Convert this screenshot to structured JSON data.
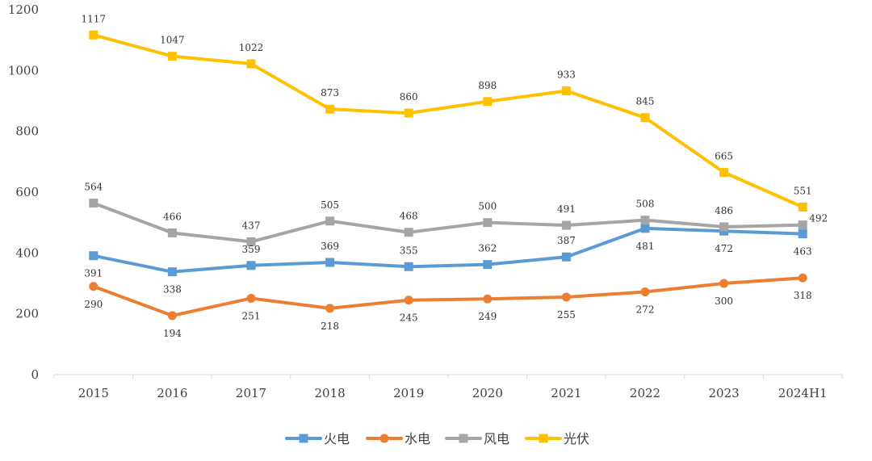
{
  "chart_data": {
    "type": "line",
    "title": "",
    "xlabel": "",
    "ylabel": "",
    "ylim": [
      0,
      1200
    ],
    "yticks": [
      0,
      200,
      400,
      600,
      800,
      1000,
      1200
    ],
    "ytick_labels": [
      "0",
      "200",
      "400",
      "600",
      "800",
      "1000",
      "1200"
    ],
    "grid": false,
    "legend_position": "bottom",
    "categories": [
      "2015",
      "2016",
      "2017",
      "2018",
      "2019",
      "2020",
      "2021",
      "2022",
      "2023",
      "2024H1"
    ],
    "series": [
      {
        "name": "火电",
        "color": "#5B9BD5",
        "marker": "square",
        "values": [
          391,
          338,
          359,
          369,
          355,
          362,
          387,
          481,
          472,
          463
        ],
        "label_pos": [
          "below",
          "below",
          "above",
          "above",
          "above",
          "above",
          "above",
          "below",
          "below",
          "below"
        ]
      },
      {
        "name": "水电",
        "color": "#ED7D31",
        "marker": "circle",
        "values": [
          290,
          194,
          251,
          218,
          245,
          249,
          255,
          272,
          300,
          318
        ],
        "label_pos": [
          "below",
          "below",
          "below",
          "below",
          "below",
          "below",
          "below",
          "below",
          "below",
          "below"
        ]
      },
      {
        "name": "风电",
        "color": "#A5A5A5",
        "marker": "square",
        "values": [
          564,
          466,
          437,
          505,
          468,
          500,
          491,
          508,
          486,
          492
        ],
        "label_pos": [
          "above",
          "above",
          "above",
          "above",
          "above",
          "above",
          "above",
          "above",
          "above",
          "right"
        ]
      },
      {
        "name": "光伏",
        "color": "#FFC000",
        "marker": "square",
        "values": [
          1117,
          1047,
          1022,
          873,
          860,
          898,
          933,
          845,
          665,
          551
        ],
        "label_pos": [
          "above",
          "above",
          "above",
          "above",
          "above",
          "above",
          "above",
          "above",
          "above",
          "above"
        ]
      }
    ]
  }
}
